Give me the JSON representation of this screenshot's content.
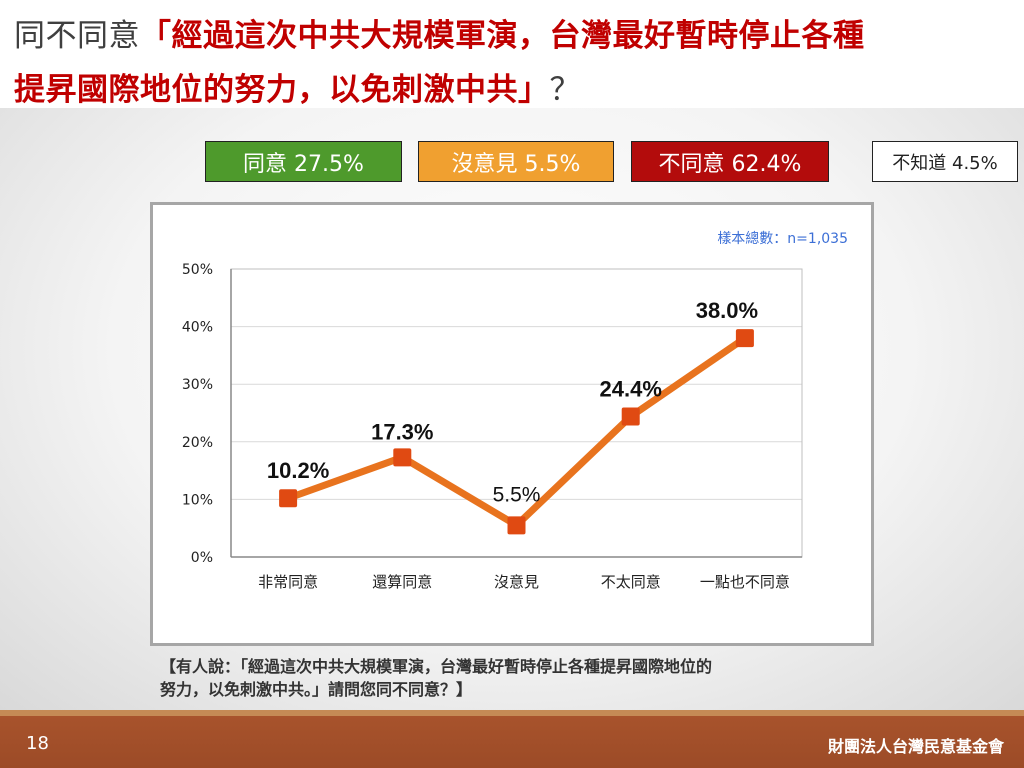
{
  "title": {
    "prefix": "同不同意",
    "quote_line1": "「經過這次中共大規模軍演，台灣最好暫時停止各種",
    "quote_line2": "提昇國際地位的努力，以免刺激中共」",
    "suffix": "？"
  },
  "legend": {
    "agree": "同意 27.5%",
    "no_opinion": "沒意見 5.5%",
    "disagree": "不同意 62.4%",
    "dont_know": "不知道 4.5%"
  },
  "colors": {
    "agree": "#4e9a2c",
    "no_opinion": "#f0a030",
    "disagree": "#b30c0c",
    "line": "#e8731e",
    "marker": "#e04a12",
    "sample_text": "#3c6fd6",
    "title_red": "#c00000"
  },
  "chart_data": {
    "type": "line",
    "sample_size_label": "樣本總數：n=1,035",
    "categories": [
      "非常同意",
      "還算同意",
      "沒意見",
      "不太同意",
      "一點也不同意"
    ],
    "values": [
      10.2,
      17.3,
      5.5,
      24.4,
      38.0
    ],
    "data_labels": [
      "10.2%",
      "17.3%",
      "5.5%",
      "24.4%",
      "38.0%"
    ],
    "y_ticks": [
      "0%",
      "10%",
      "20%",
      "30%",
      "40%",
      "50%"
    ],
    "ylim": [
      0,
      50
    ],
    "grid": true,
    "unit": "%"
  },
  "note": {
    "line1": "【有人說：「經過這次中共大規模軍演，台灣最好暫時停止各種提昇國際地位的",
    "line2": "努力，以免刺激中共。」請問您同不同意？】"
  },
  "footer": {
    "page_number": "18",
    "organization": "財團法人台灣民意基金會"
  }
}
